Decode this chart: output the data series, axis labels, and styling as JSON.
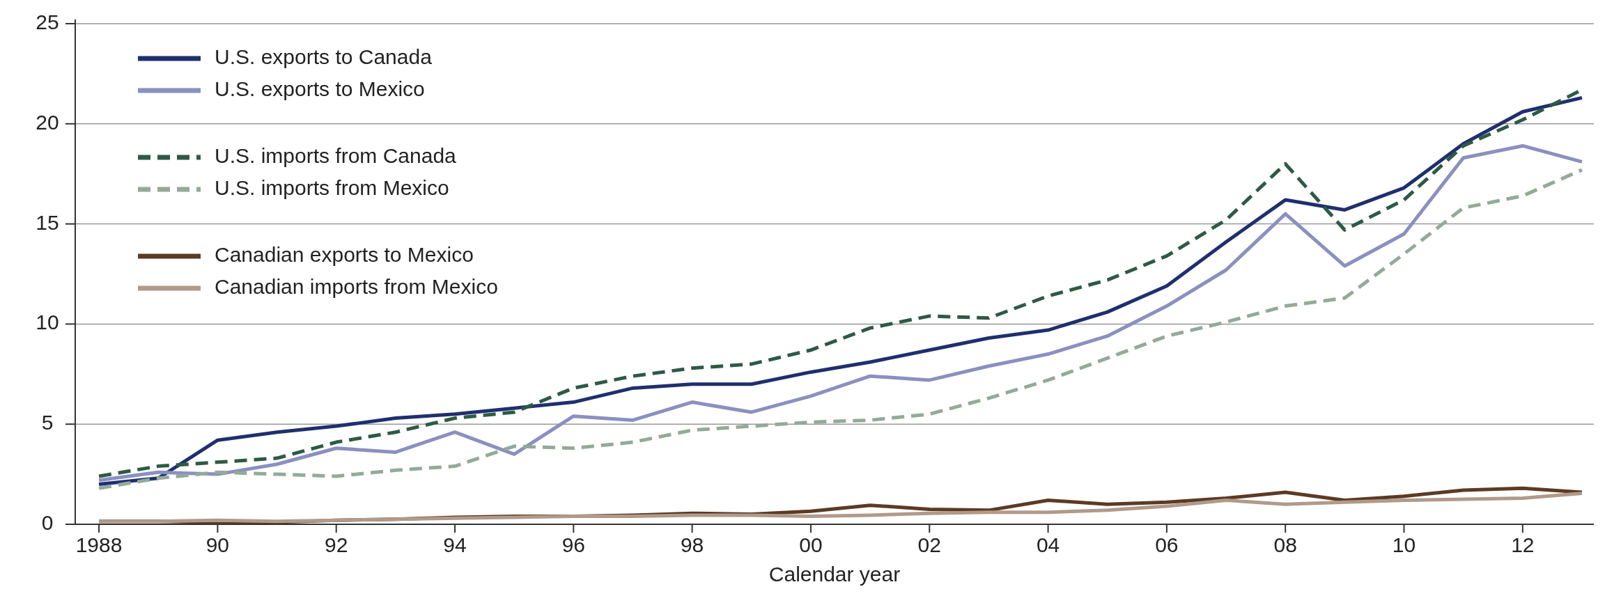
{
  "chart_data": {
    "type": "line",
    "xlabel": "Calendar year",
    "x": [
      1988,
      1989,
      1990,
      1991,
      1992,
      1993,
      1994,
      1995,
      1996,
      1997,
      1998,
      1999,
      2000,
      2001,
      2002,
      2003,
      2004,
      2005,
      2006,
      2007,
      2008,
      2009,
      2010,
      2011,
      2012,
      2013
    ],
    "xlim": [
      1987.6,
      2013.2
    ],
    "xticks": [
      {
        "value": 1988,
        "label": "1988"
      },
      {
        "value": 1990,
        "label": "90"
      },
      {
        "value": 1992,
        "label": "92"
      },
      {
        "value": 1994,
        "label": "94"
      },
      {
        "value": 1996,
        "label": "96"
      },
      {
        "value": 1998,
        "label": "98"
      },
      {
        "value": 2000,
        "label": "00"
      },
      {
        "value": 2002,
        "label": "02"
      },
      {
        "value": 2004,
        "label": "04"
      },
      {
        "value": 2006,
        "label": "06"
      },
      {
        "value": 2008,
        "label": "08"
      },
      {
        "value": 2010,
        "label": "10"
      },
      {
        "value": 2012,
        "label": "12"
      }
    ],
    "ylim": [
      0,
      25
    ],
    "yticks": [
      0,
      5,
      10,
      15,
      20,
      25
    ],
    "grid": "y",
    "legend": "top left",
    "marker": "none",
    "series": [
      {
        "name": "U.S. exports to Canada",
        "color": "#1f2f6e",
        "line_style": "solid",
        "values": [
          2.0,
          2.3,
          4.2,
          4.6,
          4.9,
          5.3,
          5.5,
          5.8,
          6.1,
          6.8,
          7.0,
          7.0,
          7.6,
          8.1,
          8.7,
          9.3,
          9.7,
          10.6,
          11.9,
          14.1,
          16.2,
          15.7,
          16.8,
          19.0,
          20.6,
          21.3
        ]
      },
      {
        "name": "U.S. exports to Mexico",
        "color": "#8a90bf",
        "line_style": "solid",
        "values": [
          2.2,
          2.6,
          2.5,
          3.0,
          3.8,
          3.6,
          4.6,
          3.5,
          5.4,
          5.2,
          6.1,
          5.6,
          6.4,
          7.4,
          7.2,
          7.9,
          8.5,
          9.4,
          10.9,
          12.7,
          15.5,
          12.9,
          14.5,
          18.3,
          18.9,
          18.1
        ]
      },
      {
        "name": "U.S. imports from Canada",
        "color": "#2d5a44",
        "line_style": "dashed",
        "values": [
          2.4,
          2.9,
          3.1,
          3.3,
          4.1,
          4.6,
          5.3,
          5.6,
          6.8,
          7.4,
          7.8,
          8.0,
          8.7,
          9.8,
          10.4,
          10.3,
          11.4,
          12.2,
          13.4,
          15.2,
          18.0,
          14.7,
          16.2,
          18.9,
          20.2,
          21.7
        ]
      },
      {
        "name": "U.S. imports from Mexico",
        "color": "#93aa99",
        "line_style": "dashed",
        "values": [
          1.8,
          2.3,
          2.6,
          2.5,
          2.4,
          2.7,
          2.9,
          3.9,
          3.8,
          4.1,
          4.7,
          4.9,
          5.1,
          5.2,
          5.5,
          6.3,
          7.2,
          8.3,
          9.4,
          10.1,
          10.9,
          11.3,
          13.5,
          15.8,
          16.4,
          17.7
        ]
      },
      {
        "name": "Canadian exports to Mexico",
        "color": "#5c3a24",
        "line_style": "solid",
        "values": [
          0.15,
          0.15,
          0.1,
          0.1,
          0.2,
          0.25,
          0.35,
          0.4,
          0.4,
          0.45,
          0.55,
          0.5,
          0.65,
          0.95,
          0.75,
          0.7,
          1.2,
          1.0,
          1.1,
          1.3,
          1.6,
          1.2,
          1.4,
          1.7,
          1.8,
          1.6
        ]
      },
      {
        "name": "Canadian imports from Mexico",
        "color": "#b09a8a",
        "line_style": "solid",
        "values": [
          0.15,
          0.15,
          0.2,
          0.15,
          0.2,
          0.25,
          0.3,
          0.35,
          0.4,
          0.4,
          0.45,
          0.45,
          0.4,
          0.45,
          0.55,
          0.6,
          0.6,
          0.7,
          0.9,
          1.2,
          1.0,
          1.1,
          1.2,
          1.25,
          1.3,
          1.55
        ]
      }
    ]
  }
}
